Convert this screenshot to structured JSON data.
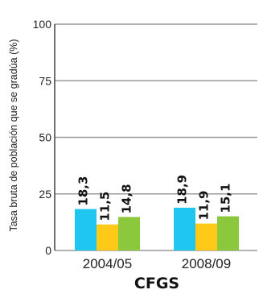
{
  "chart_data": {
    "type": "bar",
    "categories": [
      "2004/05",
      "2008/09"
    ],
    "series": [
      {
        "color": "#1fc6f0",
        "values": [
          18.3,
          18.9
        ],
        "labels": [
          "18,3",
          "18,9"
        ]
      },
      {
        "color": "#ffc917",
        "values": [
          11.5,
          11.9
        ],
        "labels": [
          "11,5",
          "11,9"
        ]
      },
      {
        "color": "#8cc83c",
        "values": [
          14.8,
          15.1
        ],
        "labels": [
          "14,8",
          "15,1"
        ]
      }
    ],
    "xlabel": "CFGS",
    "ylabel": "Tasa bruta de población que se gradúa (%)",
    "ylim": [
      0,
      100
    ],
    "yticks": [
      0,
      25,
      50,
      75,
      100
    ],
    "grid": true
  }
}
